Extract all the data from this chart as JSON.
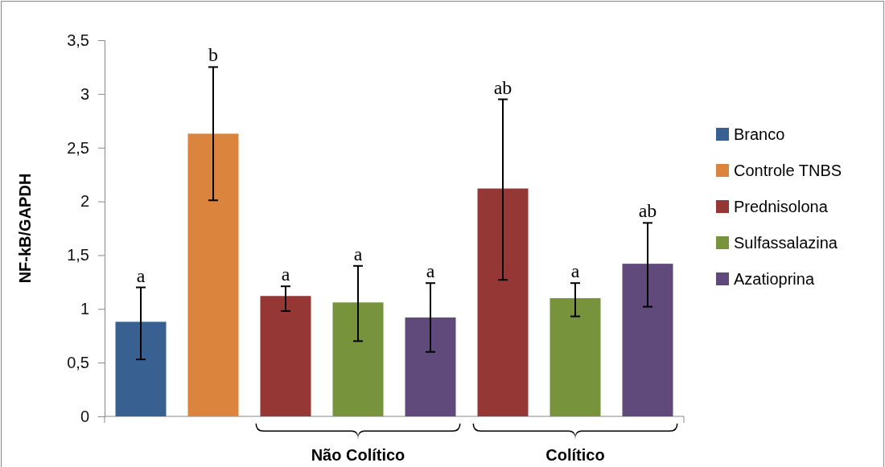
{
  "chart_data": {
    "type": "bar",
    "ylabel": "NF-kB/GAPDH",
    "categories": [
      null,
      null,
      null,
      null,
      null,
      null,
      null,
      null
    ],
    "ylim": [
      0,
      3.5
    ],
    "yticks": [
      0,
      {
        "value": 0.5,
        "label": "0,5"
      },
      1,
      {
        "value": 1.5,
        "label": "1,5"
      },
      2,
      {
        "value": 2.5,
        "label": "2,5"
      },
      3,
      {
        "value": 3.5,
        "label": "3,5"
      }
    ],
    "grid": false,
    "legend": "right",
    "series": [
      {
        "name": "Branco",
        "color": "#386192",
        "values": [
          0.88,
          null,
          null,
          null,
          null,
          null,
          null,
          null
        ],
        "errors": [
          [
            0.53,
            1.2
          ],
          null,
          null,
          null,
          null,
          null,
          null,
          null
        ]
      },
      {
        "name": "Controle TNBS",
        "color": "#db843d",
        "values": [
          null,
          2.63,
          null,
          null,
          null,
          null,
          null,
          null
        ],
        "errors": [
          null,
          [
            2.01,
            3.25
          ],
          null,
          null,
          null,
          null,
          null,
          null
        ]
      },
      {
        "name": "Prednisolona",
        "color": "#953735",
        "values": [
          null,
          null,
          1.12,
          null,
          null,
          2.12,
          null,
          null
        ],
        "errors": [
          null,
          null,
          [
            0.98,
            1.21
          ],
          null,
          null,
          [
            1.27,
            2.95
          ],
          null,
          null
        ]
      },
      {
        "name": "Sulfassalazina",
        "color": "#77933c",
        "values": [
          null,
          null,
          null,
          1.06,
          null,
          null,
          1.1,
          null
        ],
        "errors": [
          null,
          null,
          null,
          [
            0.7,
            1.4
          ],
          null,
          null,
          [
            0.93,
            1.24
          ],
          null
        ]
      },
      {
        "name": "Azatioprina",
        "color": "#604a7b",
        "values": [
          null,
          null,
          null,
          null,
          0.92,
          null,
          null,
          1.42
        ],
        "errors": [
          null,
          null,
          null,
          null,
          [
            0.6,
            1.24
          ],
          null,
          null,
          [
            1.02,
            1.8
          ]
        ]
      }
    ],
    "annotations": [
      "a",
      "b",
      "a",
      "a",
      "a",
      "ab",
      "a",
      "ab",
      "Não Colítico",
      "Colítico"
    ]
  }
}
